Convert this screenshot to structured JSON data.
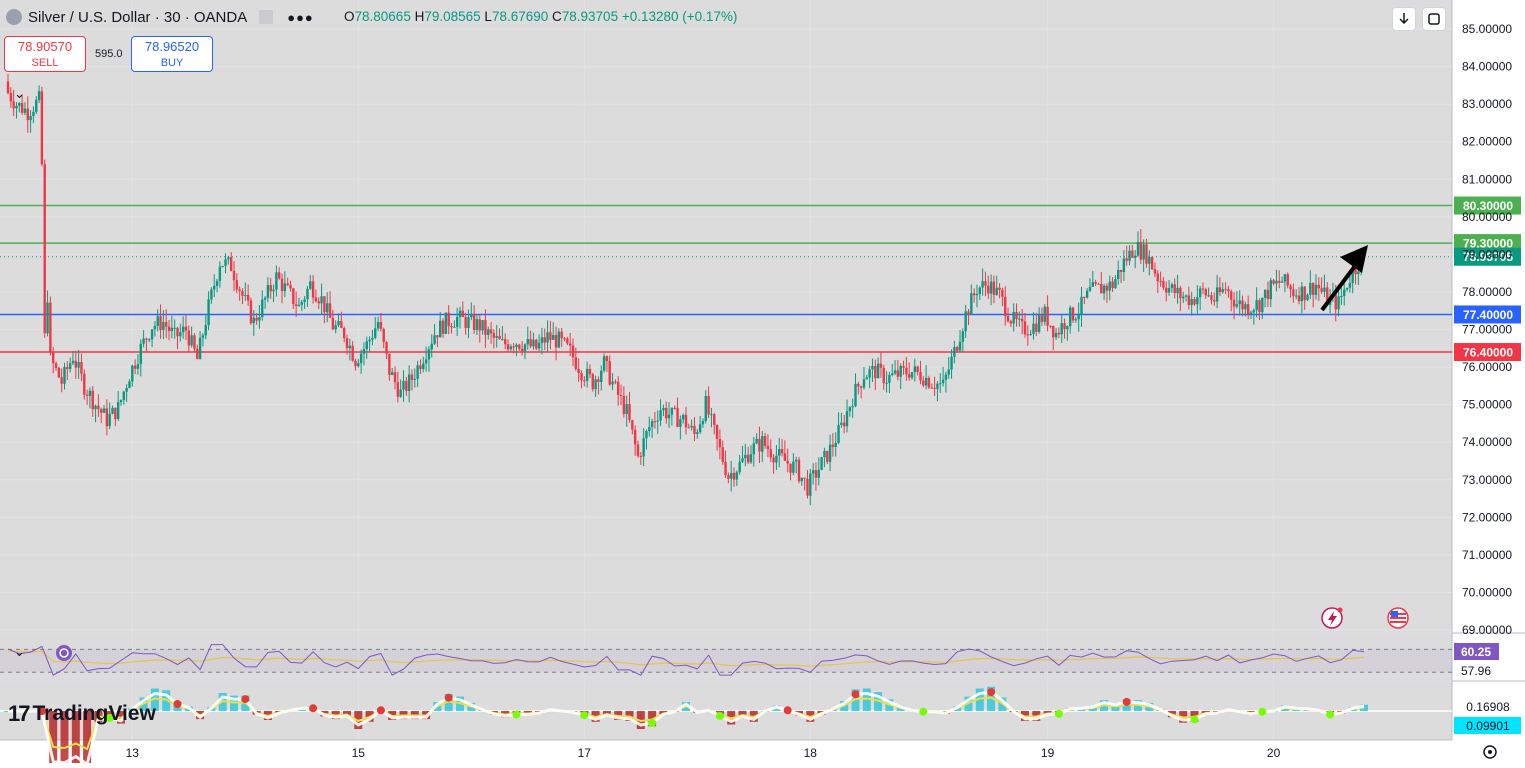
{
  "header": {
    "symbol_title": "Silver / U.S. Dollar · 30 · OANDA",
    "ohlc": {
      "open_label": "O",
      "open": "78.80665",
      "high_label": "H",
      "high": "79.08565",
      "low_label": "L",
      "low": "78.67690",
      "close_label": "C",
      "close": "78.93705",
      "change": "+0.13280 (+0.17%)"
    }
  },
  "trade": {
    "sell_price": "78.90570",
    "sell_label": "SELL",
    "spread": "595.0",
    "buy_price": "78.96520",
    "buy_label": "BUY"
  },
  "brand": "TradingView",
  "colors": {
    "up": "#089981",
    "down": "#f23645",
    "green_line": "#4caf50",
    "blue_line": "#2962ff",
    "red_line": "#f23645",
    "rsi": "#7e57c2",
    "rsi_ma": "#e8c44a",
    "macd_up": "#26c6da",
    "macd_down": "#b71c1c"
  },
  "icons": [
    "download-icon",
    "fullscreen-icon",
    "lightning-icon",
    "us-flag-icon",
    "sync-icon",
    "chevron-down-icon",
    "settings-icon"
  ],
  "chart_data": {
    "type": "candlestick",
    "y_axis": {
      "ylim": [
        69.0,
        85.0
      ],
      "ticks": [
        "85.00000",
        "84.00000",
        "83.00000",
        "82.00000",
        "81.00000",
        "80.00000",
        "79.00000",
        "78.00000",
        "77.00000",
        "76.00000",
        "75.00000",
        "74.00000",
        "73.00000",
        "72.00000",
        "71.00000",
        "70.00000",
        "69.00000"
      ]
    },
    "x_axis": {
      "ticks": [
        {
          "label": "13",
          "index": 11
        },
        {
          "label": "15",
          "index": 31
        },
        {
          "label": "17",
          "index": 51
        },
        {
          "label": "18",
          "index": 71
        },
        {
          "label": "19",
          "index": 92
        },
        {
          "label": "20",
          "index": 112
        }
      ]
    },
    "levels": [
      {
        "value": 80.3,
        "label": "80.30000",
        "color": "#4caf50"
      },
      {
        "value": 79.3,
        "label": "79.30000",
        "color": "#4caf50"
      },
      {
        "value": 77.4,
        "label": "77.40000",
        "color": "#2962ff"
      },
      {
        "value": 76.4,
        "label": "76.40000",
        "color": "#f23645"
      }
    ],
    "last_price": {
      "value": 78.93705,
      "label": "78.93705"
    },
    "close_path": [
      [
        0,
        83.4
      ],
      [
        1,
        83.0
      ],
      [
        2,
        82.8
      ],
      [
        3,
        83.1
      ],
      [
        4,
        76.2
      ],
      [
        5,
        75.6
      ],
      [
        6,
        76.3
      ],
      [
        7,
        75.5
      ],
      [
        8,
        75.0
      ],
      [
        9,
        74.6
      ],
      [
        10,
        74.9
      ],
      [
        11,
        75.8
      ],
      [
        12,
        76.5
      ],
      [
        13,
        77.1
      ],
      [
        14,
        77.2
      ],
      [
        15,
        76.8
      ],
      [
        16,
        77.0
      ],
      [
        17,
        76.2
      ],
      [
        18,
        77.6
      ],
      [
        19,
        78.8
      ],
      [
        20,
        78.7
      ],
      [
        21,
        77.9
      ],
      [
        22,
        77.2
      ],
      [
        23,
        77.8
      ],
      [
        24,
        78.4
      ],
      [
        25,
        78.0
      ],
      [
        26,
        77.6
      ],
      [
        27,
        78.2
      ],
      [
        28,
        77.8
      ],
      [
        29,
        77.1
      ],
      [
        30,
        76.9
      ],
      [
        31,
        76.2
      ],
      [
        32,
        76.6
      ],
      [
        33,
        77.2
      ],
      [
        34,
        75.9
      ],
      [
        35,
        75.3
      ],
      [
        36,
        75.7
      ],
      [
        37,
        76.3
      ],
      [
        38,
        76.9
      ],
      [
        39,
        77.2
      ],
      [
        40,
        77.3
      ],
      [
        41,
        77.2
      ],
      [
        42,
        77.1
      ],
      [
        43,
        76.8
      ],
      [
        44,
        76.6
      ],
      [
        45,
        76.7
      ],
      [
        46,
        76.6
      ],
      [
        47,
        76.5
      ],
      [
        48,
        76.8
      ],
      [
        49,
        76.7
      ],
      [
        50,
        76.4
      ],
      [
        51,
        75.9
      ],
      [
        52,
        75.6
      ],
      [
        53,
        76.1
      ],
      [
        54,
        75.4
      ],
      [
        55,
        74.8
      ],
      [
        56,
        73.6
      ],
      [
        57,
        74.4
      ],
      [
        58,
        74.9
      ],
      [
        59,
        74.7
      ],
      [
        60,
        74.6
      ],
      [
        61,
        74.2
      ],
      [
        62,
        75.0
      ],
      [
        63,
        74.0
      ],
      [
        64,
        73.1
      ],
      [
        65,
        73.4
      ],
      [
        66,
        73.8
      ],
      [
        67,
        74.0
      ],
      [
        68,
        73.7
      ],
      [
        69,
        73.5
      ],
      [
        70,
        73.3
      ],
      [
        71,
        72.8
      ],
      [
        72,
        73.3
      ],
      [
        73,
        73.8
      ],
      [
        74,
        74.4
      ],
      [
        75,
        75.2
      ],
      [
        76,
        75.8
      ],
      [
        77,
        75.9
      ],
      [
        78,
        75.7
      ],
      [
        79,
        75.8
      ],
      [
        80,
        75.9
      ],
      [
        81,
        75.8
      ],
      [
        82,
        75.6
      ],
      [
        83,
        75.5
      ],
      [
        84,
        76.4
      ],
      [
        85,
        77.4
      ],
      [
        86,
        78.1
      ],
      [
        87,
        78.2
      ],
      [
        88,
        77.9
      ],
      [
        89,
        77.3
      ],
      [
        90,
        77.0
      ],
      [
        91,
        77.1
      ],
      [
        92,
        77.4
      ],
      [
        93,
        76.9
      ],
      [
        94,
        77.3
      ],
      [
        95,
        77.5
      ],
      [
        96,
        78.0
      ],
      [
        97,
        78.1
      ],
      [
        98,
        78.2
      ],
      [
        99,
        78.8
      ],
      [
        100,
        79.2
      ],
      [
        101,
        79.0
      ],
      [
        102,
        78.4
      ],
      [
        103,
        78.1
      ],
      [
        104,
        77.9
      ],
      [
        105,
        77.8
      ],
      [
        106,
        78.0
      ],
      [
        107,
        77.8
      ],
      [
        108,
        78.1
      ],
      [
        109,
        77.7
      ],
      [
        110,
        77.6
      ],
      [
        111,
        77.7
      ],
      [
        112,
        78.1
      ],
      [
        113,
        78.3
      ],
      [
        114,
        78.0
      ],
      [
        115,
        78.0
      ],
      [
        116,
        78.2
      ],
      [
        117,
        77.8
      ],
      [
        118,
        77.7
      ],
      [
        119,
        78.4
      ],
      [
        120,
        78.9
      ]
    ],
    "indicators": {
      "rsi": {
        "value_label": "60.25",
        "ma_label": "57.96",
        "ylim": [
          0,
          100
        ],
        "band_upper": 70,
        "band_lower": 30
      },
      "macd": {
        "macd_label": "0.16908",
        "signal_label": "0.09901"
      }
    }
  }
}
